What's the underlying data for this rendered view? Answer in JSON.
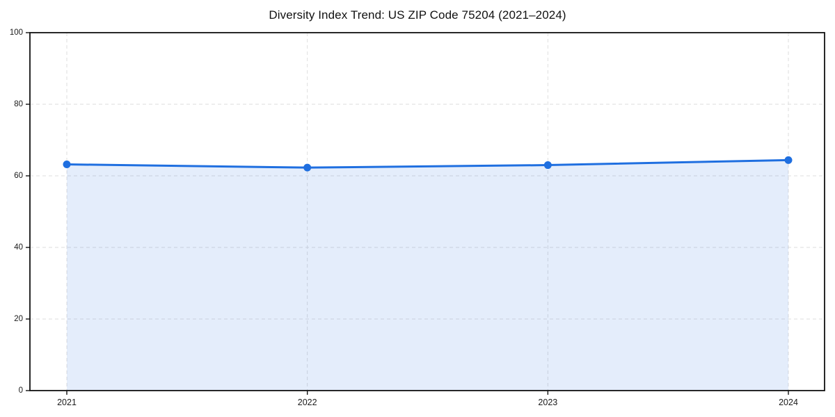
{
  "figure": {
    "background": "#ffffff"
  },
  "chart_data": {
    "type": "area",
    "title": "Diversity Index Trend: US ZIP Code 75204 (2021–2024)",
    "x": [
      "2021",
      "2022",
      "2023",
      "2024"
    ],
    "values": [
      63.2,
      62.3,
      63.0,
      64.4
    ],
    "xlabel": "",
    "ylabel": "",
    "ylim": [
      0,
      100
    ],
    "yticks": [
      0,
      20,
      40,
      60,
      80,
      100
    ],
    "grid": "dashed",
    "legend": "none",
    "colors": {
      "line": "#1f6fe0",
      "marker": "#1f6fe0",
      "fill": "#1f6fe0",
      "fill_opacity": 0.12,
      "gridline": "#dedede",
      "spine": "#111111",
      "tick_label": "#1a1a1a"
    }
  }
}
